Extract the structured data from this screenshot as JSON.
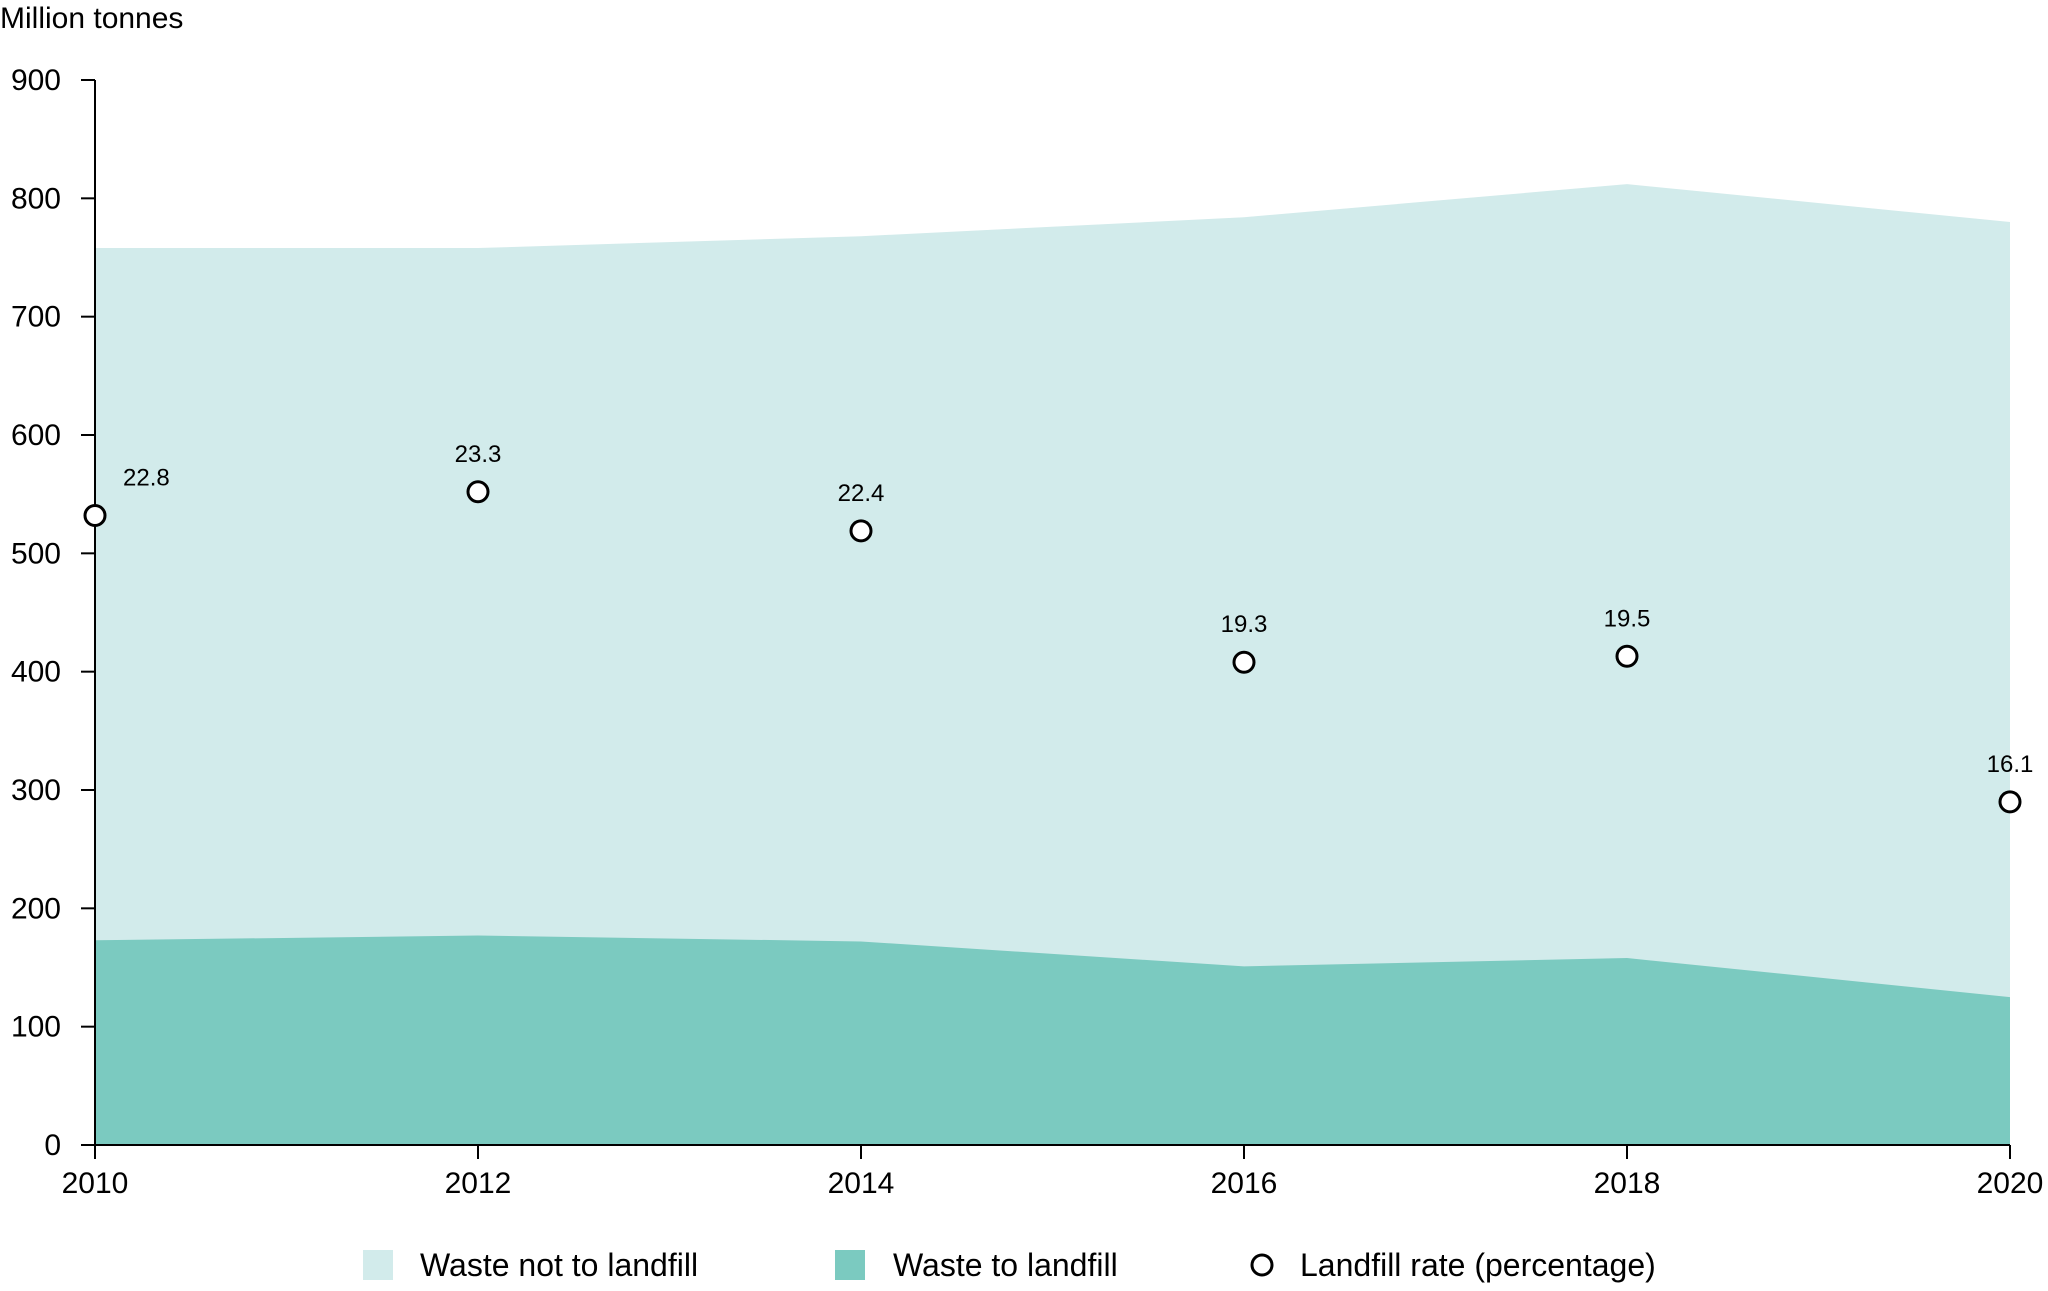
{
  "chart_data": {
    "type": "area",
    "x": [
      2010,
      2012,
      2014,
      2016,
      2018,
      2020
    ],
    "xlim": [
      2010,
      2020
    ],
    "ylim": [
      0,
      900
    ],
    "y_ticks": [
      0,
      100,
      200,
      300,
      400,
      500,
      600,
      700,
      800,
      900
    ],
    "x_ticks": [
      2010,
      2012,
      2014,
      2016,
      2018,
      2020
    ],
    "ylabel": "Million tonnes",
    "xlabel": "",
    "grid": false,
    "legend_position": "bottom",
    "series": [
      {
        "name": "Waste not to landfill",
        "kind": "area-total",
        "color": "#d2ebeb",
        "values": [
          758,
          758,
          768,
          784,
          812,
          780
        ]
      },
      {
        "name": "Waste to landfill",
        "kind": "area",
        "color": "#7bcac0",
        "values": [
          173,
          177,
          172,
          151,
          158,
          125
        ]
      },
      {
        "name": "Landfill rate (percentage)",
        "kind": "markers",
        "marker": "open-circle",
        "values": [
          22.8,
          23.3,
          22.4,
          19.3,
          19.5,
          16.1
        ],
        "labels": [
          "22.8",
          "23.3",
          "22.4",
          "19.3",
          "19.5",
          "16.1"
        ],
        "marker_y_on_left_axis": [
          532,
          552,
          519,
          408,
          413,
          290
        ]
      }
    ]
  }
}
